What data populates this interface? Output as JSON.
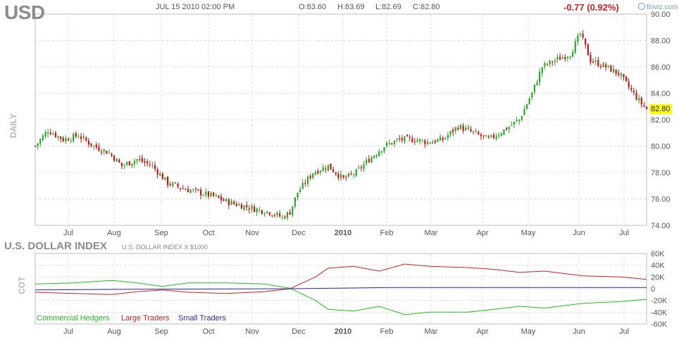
{
  "header": {
    "ticker": "USD",
    "datetime": "JUL 15 2010 02:00 PM",
    "open": "O:83.60",
    "high": "H:83.69",
    "low": "L:82.69",
    "close": "C:82.80",
    "change": "-0.77 (0.92%)",
    "brand": "finviz.com",
    "brand_icon": "finviz-logo-icon"
  },
  "labels": {
    "period": "DAILY",
    "last_price": "82.80",
    "index_title": "U.S. DOLLAR INDEX",
    "index_subtitle": "U.S. DOLLAR INDEX X $1000",
    "cot": "COT"
  },
  "colors": {
    "up": "#22aa22",
    "down": "#cc1111",
    "grid": "#dcdcdc",
    "commercial": "#22bb22",
    "large": "#cc2222",
    "small": "#2a2aaa",
    "highlight": "#ffff00"
  },
  "chart_data": [
    {
      "type": "candlestick",
      "title": "USD",
      "period": "daily",
      "y_axis": "right",
      "ylim": [
        74,
        90
      ],
      "y_ticks": [
        "90.00",
        "88.00",
        "86.00",
        "84.00",
        "82.00",
        "80.00",
        "78.00",
        "76.00",
        "74.00"
      ],
      "x_ticks": [
        "Jul",
        "Aug",
        "Sep",
        "Oct",
        "Nov",
        "Dec",
        "2010",
        "Feb",
        "Mar",
        "Apr",
        "May",
        "Jun",
        "Jul"
      ],
      "grid": true,
      "last_close": 82.8,
      "close_path": [
        [
          0,
          80.0
        ],
        [
          5,
          81.2
        ],
        [
          11,
          80.5
        ],
        [
          17,
          80.8
        ],
        [
          23,
          80.0
        ],
        [
          29,
          79.5
        ],
        [
          34,
          78.5
        ],
        [
          40,
          79.0
        ],
        [
          46,
          78.5
        ],
        [
          52,
          77.2
        ],
        [
          58,
          76.8
        ],
        [
          64,
          76.5
        ],
        [
          70,
          76.2
        ],
        [
          75,
          75.8
        ],
        [
          81,
          75.5
        ],
        [
          87,
          75.2
        ],
        [
          92,
          75.0
        ],
        [
          97,
          74.6
        ],
        [
          100,
          75.0
        ],
        [
          103,
          76.5
        ],
        [
          109,
          78.0
        ],
        [
          115,
          78.5
        ],
        [
          121,
          77.5
        ],
        [
          126,
          78.0
        ],
        [
          131,
          79.0
        ],
        [
          137,
          80.0
        ],
        [
          143,
          80.5
        ],
        [
          149,
          80.5
        ],
        [
          154,
          80.3
        ],
        [
          160,
          80.5
        ],
        [
          166,
          81.5
        ],
        [
          172,
          81.0
        ],
        [
          178,
          80.5
        ],
        [
          184,
          81.2
        ],
        [
          190,
          82.0
        ],
        [
          195,
          84.0
        ],
        [
          199,
          86.0
        ],
        [
          204,
          86.5
        ],
        [
          210,
          87.0
        ],
        [
          214,
          88.5
        ],
        [
          218,
          86.5
        ],
        [
          224,
          86.0
        ],
        [
          229,
          85.5
        ],
        [
          234,
          84.2
        ],
        [
          238,
          83.2
        ],
        [
          240,
          82.8
        ]
      ]
    },
    {
      "type": "line",
      "title": "U.S. DOLLAR INDEX",
      "subtitle": "U.S. DOLLAR INDEX X $1000",
      "y_axis": "right",
      "ylim": [
        -60,
        60
      ],
      "y_ticks": [
        "60K",
        "40K",
        "20K",
        "0",
        "-20K",
        "-40K",
        "-60K"
      ],
      "x_ticks": [
        "Jul",
        "Aug",
        "Sep",
        "Oct",
        "Nov",
        "Dec",
        "2010",
        "Feb",
        "Mar",
        "Apr",
        "May",
        "Jun",
        "Jul"
      ],
      "series": [
        {
          "name": "Commercial Hedgers",
          "values": [
            [
              0,
              8
            ],
            [
              15,
              10
            ],
            [
              30,
              14
            ],
            [
              40,
              10
            ],
            [
              50,
              4
            ],
            [
              60,
              10
            ],
            [
              75,
              10
            ],
            [
              90,
              8
            ],
            [
              100,
              1
            ],
            [
              110,
              -20
            ],
            [
              115,
              -35
            ],
            [
              125,
              -38
            ],
            [
              135,
              -30
            ],
            [
              145,
              -44
            ],
            [
              155,
              -40
            ],
            [
              170,
              -40
            ],
            [
              180,
              -35
            ],
            [
              190,
              -30
            ],
            [
              200,
              -33
            ],
            [
              215,
              -25
            ],
            [
              230,
              -22
            ],
            [
              240,
              -18
            ]
          ]
        },
        {
          "name": "Large Traders",
          "values": [
            [
              0,
              -6
            ],
            [
              15,
              -8
            ],
            [
              30,
              -10
            ],
            [
              40,
              -5
            ],
            [
              50,
              -2
            ],
            [
              60,
              -6
            ],
            [
              75,
              -8
            ],
            [
              90,
              -5
            ],
            [
              100,
              0
            ],
            [
              110,
              20
            ],
            [
              115,
              35
            ],
            [
              125,
              38
            ],
            [
              135,
              30
            ],
            [
              145,
              42
            ],
            [
              155,
              38
            ],
            [
              170,
              36
            ],
            [
              180,
              33
            ],
            [
              190,
              28
            ],
            [
              200,
              30
            ],
            [
              215,
              22
            ],
            [
              230,
              20
            ],
            [
              240,
              16
            ]
          ]
        },
        {
          "name": "Small Traders",
          "values": [
            [
              0,
              -2
            ],
            [
              40,
              -1
            ],
            [
              100,
              0
            ],
            [
              140,
              2
            ],
            [
              200,
              2
            ],
            [
              240,
              2
            ]
          ]
        }
      ]
    }
  ]
}
